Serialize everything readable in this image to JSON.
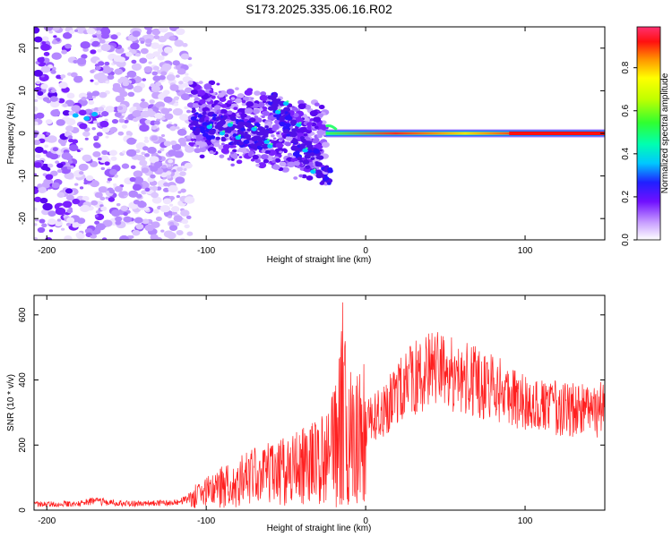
{
  "chart_data": [
    {
      "type": "heatmap",
      "title": "S173.2025.335.06.16.R02",
      "xlabel": "Height of straight line (km)",
      "ylabel": "Frequency (Hz)",
      "xlim": [
        -208,
        150
      ],
      "ylim": [
        -25,
        25
      ],
      "x_ticks": [
        -200,
        -100,
        0,
        100
      ],
      "y_ticks": [
        -20,
        -10,
        0,
        10,
        20
      ],
      "colorbar": {
        "label": "Normalized spectral amplitude",
        "range": [
          0.0,
          0.99
        ],
        "ticks": [
          "0.0",
          "0.2",
          "0.4",
          "0.6",
          "0.8"
        ],
        "tick_values": [
          0.0,
          0.2,
          0.4,
          0.6,
          0.8
        ]
      },
      "features": {
        "noise_region_km": [
          -208,
          -110
        ],
        "scatter_region_km": [
          -110,
          -25
        ],
        "line_start_km": -25,
        "line_center_hz": 0,
        "line_peak_start_km": 90,
        "line_peak_value": 0.95
      }
    },
    {
      "type": "line",
      "xlabel": "Height of straight line (km)",
      "ylabel": "SNR (10 * v/v)",
      "xlim": [
        -208,
        150
      ],
      "ylim": [
        0,
        660
      ],
      "x_ticks": [
        -200,
        -100,
        0,
        100
      ],
      "y_ticks": [
        0,
        200,
        400,
        600
      ],
      "color": "#ff2020",
      "envelope": {
        "x": [
          -208,
          -180,
          -172,
          -150,
          -120,
          -105,
          -90,
          -75,
          -60,
          -45,
          -35,
          -25,
          -18,
          -15,
          -10,
          -5,
          0,
          10,
          20,
          30,
          40,
          50,
          60,
          70,
          80,
          90,
          100,
          110,
          120,
          130,
          140,
          150
        ],
        "y": [
          18,
          20,
          28,
          20,
          22,
          45,
          75,
          95,
          110,
          125,
          140,
          160,
          220,
          330,
          230,
          220,
          260,
          300,
          360,
          405,
          430,
          425,
          410,
          395,
          375,
          355,
          335,
          320,
          310,
          305,
          305,
          310
        ]
      },
      "spike": {
        "x_km": -15,
        "peak": 660
      }
    }
  ],
  "colors": {
    "line": "#ff2020",
    "axis": "#000000",
    "background": "#ffffff"
  }
}
